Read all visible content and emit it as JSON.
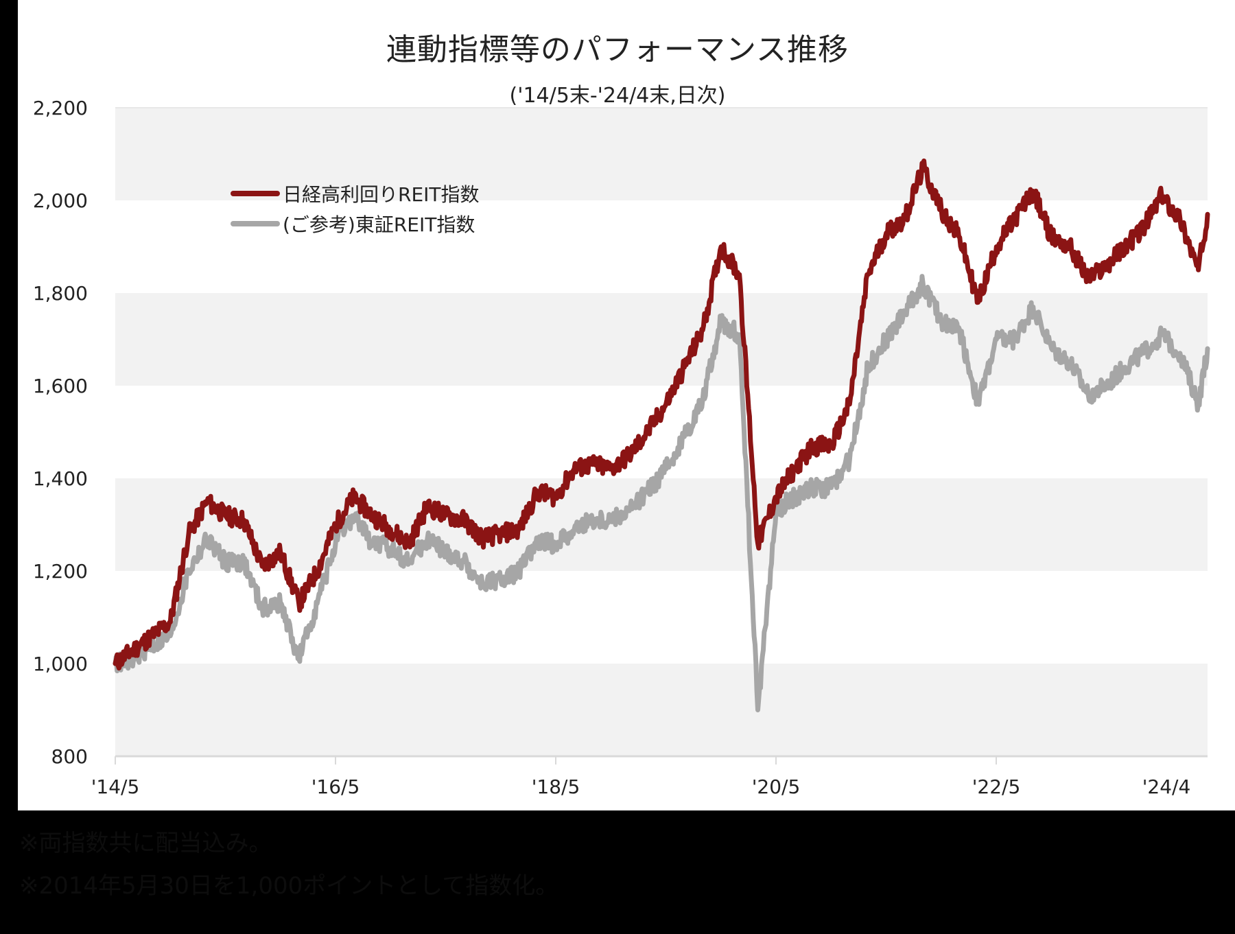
{
  "header": {
    "title": "連動指標等のパフォーマンス推移",
    "subtitle": "('14/5末-'24/4末,日次)"
  },
  "legend": [
    {
      "label": "日経高利回りREIT指数",
      "color": "#8b1414"
    },
    {
      "label": "(ご参考)東証REIT指数",
      "color": "#a6a6a6"
    }
  ],
  "notes": [
    "※両指数共に配当込み。",
    "※2014年5月30日を1,000ポイントとして指数化。"
  ],
  "colors": {
    "band": "#f2f2f2",
    "axis": "#d9d9d9",
    "series_primary": "#8b1414",
    "series_reference": "#a6a6a6"
  },
  "chart_data": {
    "type": "line",
    "title": "連動指標等のパフォーマンス推移",
    "subtitle": "('14/5末-'24/4末,日次)",
    "xlabel": "",
    "ylabel": "",
    "ylim": [
      800,
      2200
    ],
    "yticks": [
      800,
      1000,
      1200,
      1400,
      1600,
      1800,
      2000,
      2200
    ],
    "ytick_labels": [
      "800",
      "1,000",
      "1,200",
      "1,400",
      "1,600",
      "1,800",
      "2,000",
      "2,200"
    ],
    "xtick_labels": [
      "'14/5",
      "'16/5",
      "'18/5",
      "'20/5",
      "'22/5",
      "'24/4"
    ],
    "grid": "alternating horizontal bands",
    "legend_position": "upper-left inside plot",
    "x": [
      "14/05",
      "14/07",
      "14/09",
      "14/11",
      "15/01",
      "15/03",
      "15/05",
      "15/07",
      "15/09",
      "15/11",
      "16/01",
      "16/03",
      "16/05",
      "16/07",
      "16/09",
      "16/11",
      "17/01",
      "17/03",
      "17/05",
      "17/07",
      "17/09",
      "17/11",
      "18/01",
      "18/03",
      "18/05",
      "18/07",
      "18/09",
      "18/11",
      "19/01",
      "19/03",
      "19/05",
      "19/07",
      "19/09",
      "19/11",
      "20/01",
      "20/03",
      "20/05",
      "20/07",
      "20/09",
      "20/11",
      "21/01",
      "21/03",
      "21/05",
      "21/07",
      "21/09",
      "21/11",
      "22/01",
      "22/03",
      "22/05",
      "22/07",
      "22/09",
      "22/11",
      "23/01",
      "23/03",
      "23/05",
      "23/07",
      "23/09",
      "23/11",
      "24/01",
      "24/03",
      "24/04"
    ],
    "series": [
      {
        "name": "日経高利回りREIT指数",
        "values": [
          1000,
          1030,
          1060,
          1090,
          1280,
          1350,
          1320,
          1310,
          1210,
          1240,
          1130,
          1200,
          1300,
          1360,
          1320,
          1290,
          1260,
          1340,
          1320,
          1310,
          1270,
          1280,
          1290,
          1370,
          1360,
          1420,
          1430,
          1420,
          1450,
          1500,
          1560,
          1640,
          1720,
          1900,
          1840,
          1260,
          1360,
          1420,
          1470,
          1470,
          1560,
          1840,
          1930,
          1960,
          2070,
          1980,
          1920,
          1780,
          1900,
          1960,
          2020,
          1920,
          1900,
          1830,
          1860,
          1900,
          1940,
          2010,
          1960,
          1850,
          1970
        ]
      },
      {
        "name": "(ご参考)東証REIT指数",
        "values": [
          1000,
          1010,
          1040,
          1060,
          1200,
          1270,
          1220,
          1220,
          1120,
          1130,
          1010,
          1130,
          1260,
          1320,
          1260,
          1250,
          1220,
          1270,
          1240,
          1220,
          1170,
          1180,
          1200,
          1260,
          1260,
          1290,
          1310,
          1310,
          1330,
          1370,
          1420,
          1490,
          1570,
          1740,
          1710,
          900,
          1330,
          1360,
          1380,
          1380,
          1440,
          1640,
          1700,
          1760,
          1820,
          1740,
          1720,
          1560,
          1700,
          1700,
          1770,
          1680,
          1650,
          1580,
          1600,
          1640,
          1670,
          1710,
          1670,
          1560,
          1680
        ]
      }
    ]
  }
}
